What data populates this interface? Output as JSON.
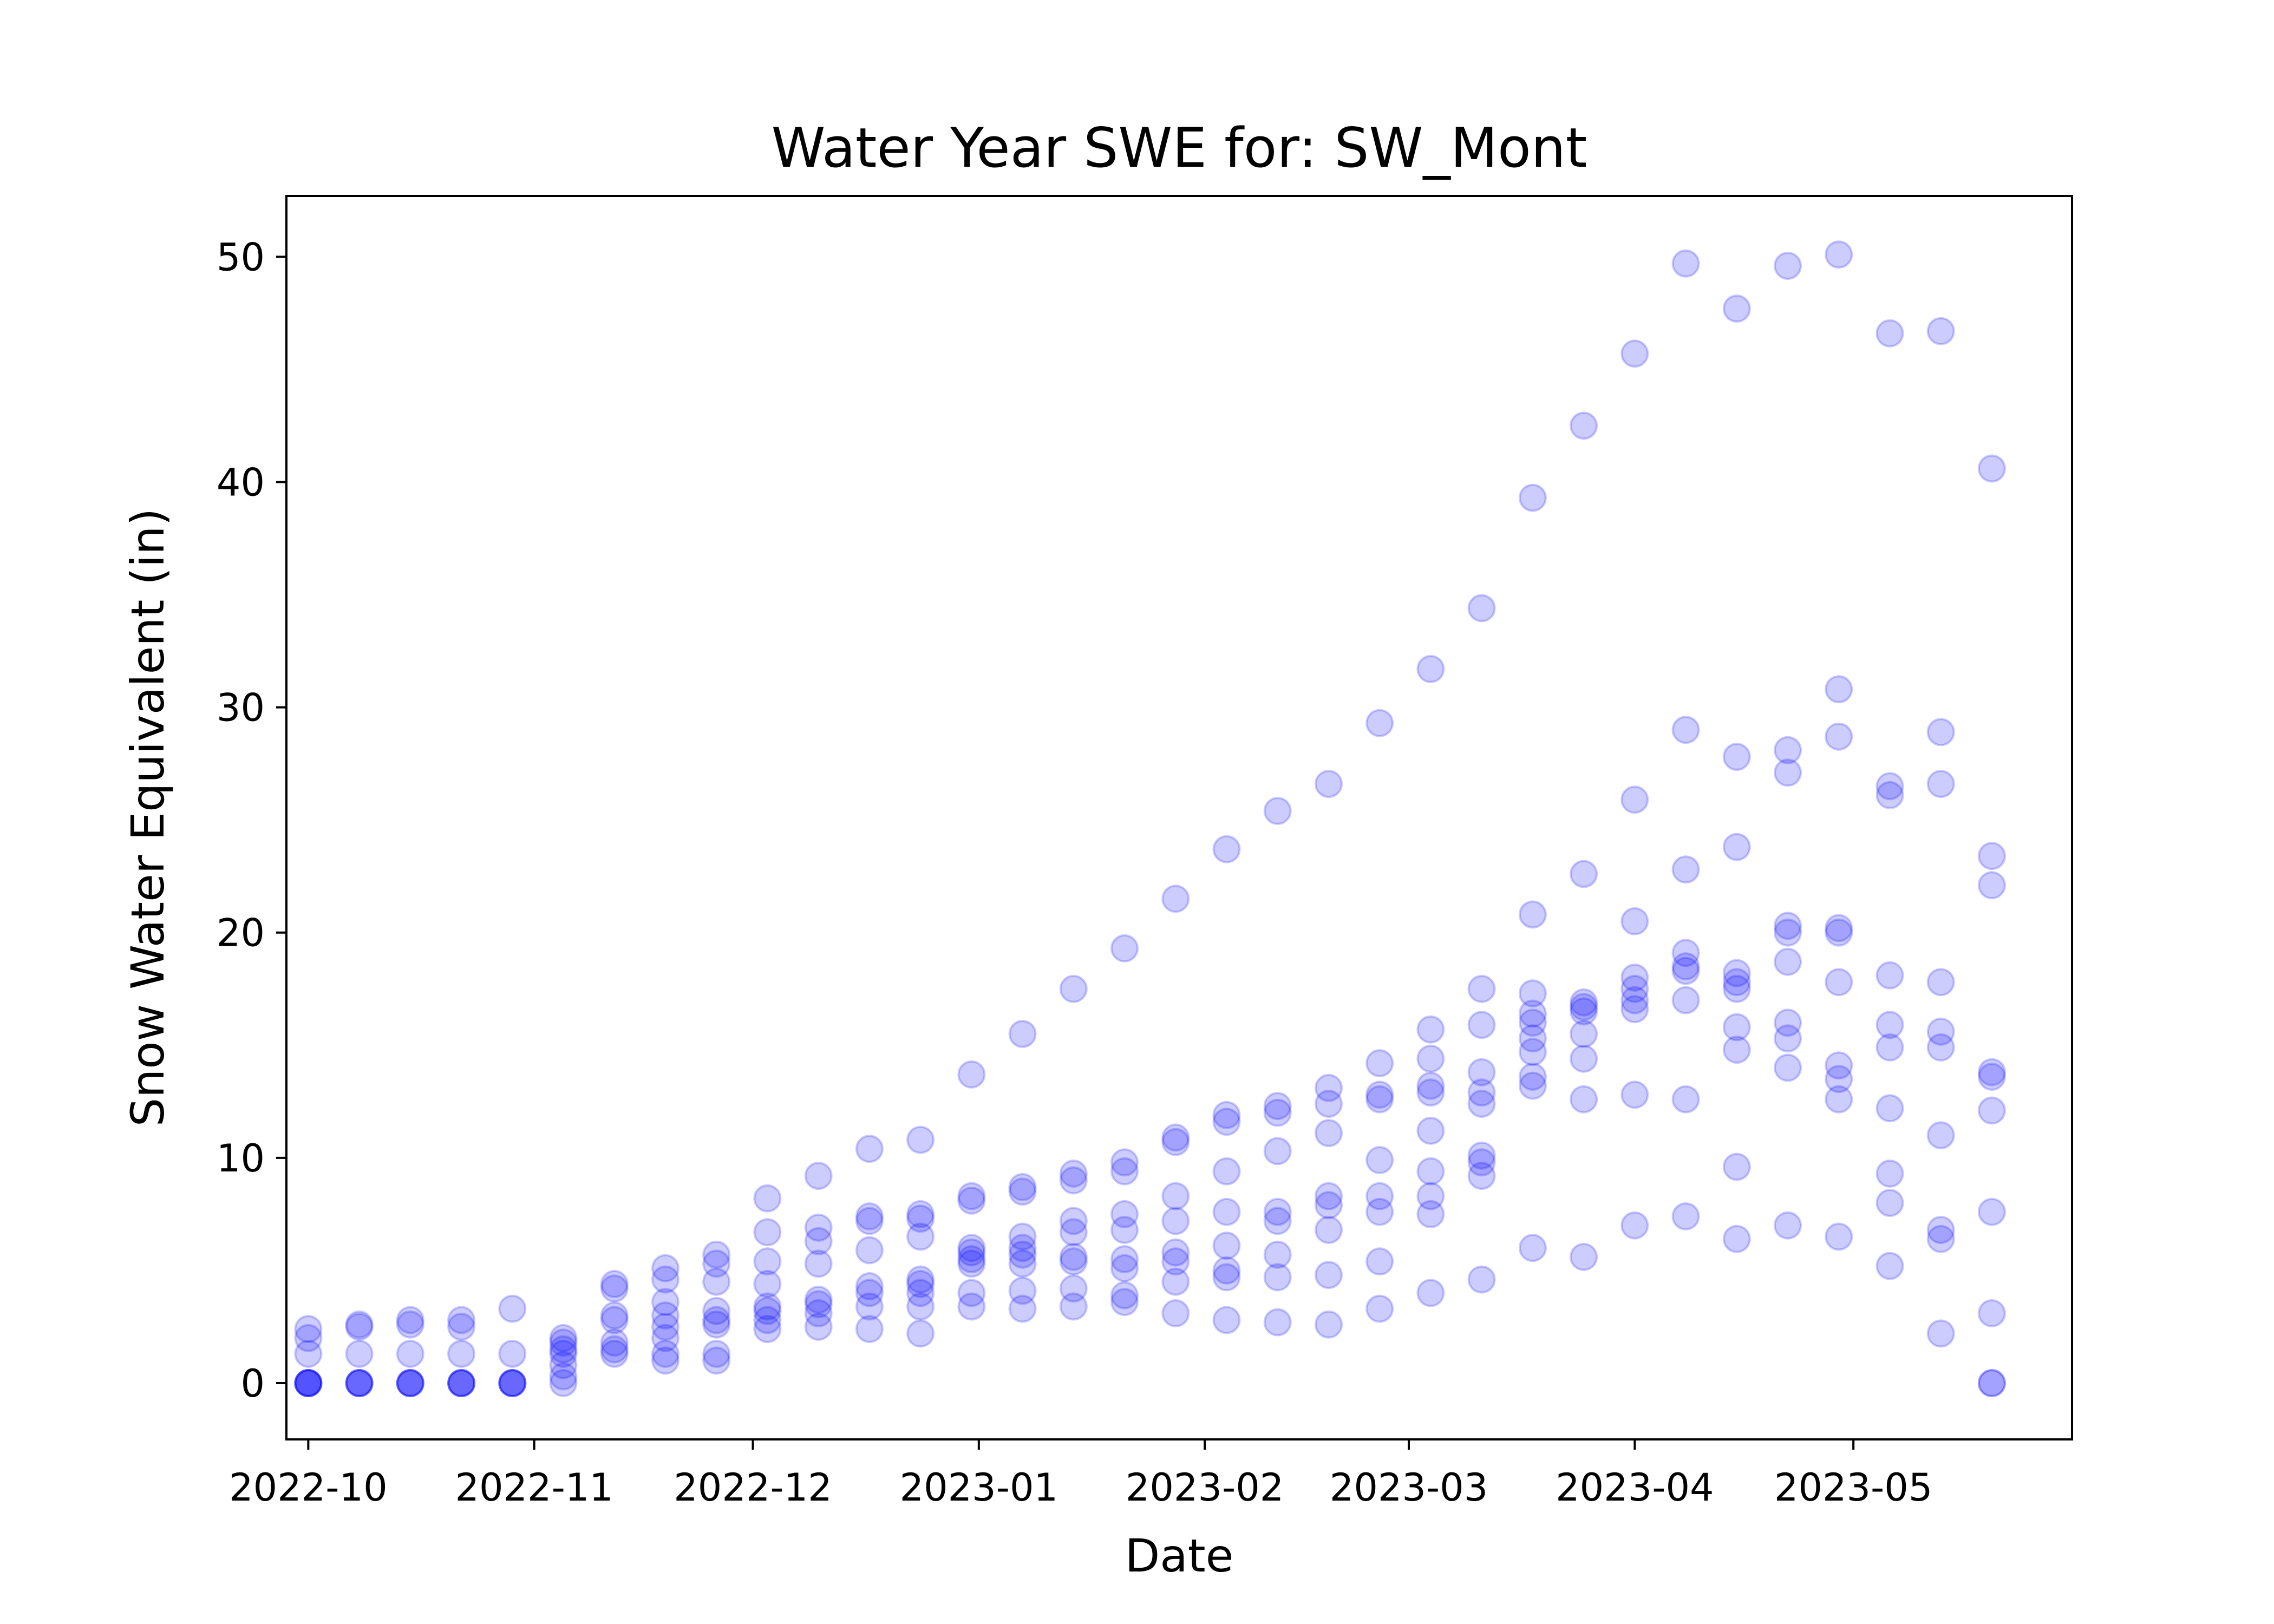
{
  "chart_data": {
    "type": "scatter",
    "title": "Water Year SWE for: SW_Mont",
    "xlabel": "Date",
    "ylabel": "Snow Water Equivalent (in)",
    "x_axis": {
      "kind": "date",
      "range": [
        "2022-09-28",
        "2023-05-31"
      ],
      "tick_labels": [
        "2022-10",
        "2022-11",
        "2022-12",
        "2023-01",
        "2023-02",
        "2023-03",
        "2023-04",
        "2023-05"
      ]
    },
    "y_axis": {
      "range": [
        -2.5,
        52.7
      ],
      "ticks": [
        0,
        10,
        20,
        30,
        40,
        50
      ]
    },
    "grid": false,
    "legend": "none",
    "marker": {
      "color": "#0000ff",
      "opacity": 0.2,
      "shape": "circle"
    },
    "points": [
      {
        "date": "2022-10-01",
        "values": [
          0,
          0,
          0,
          0,
          0,
          1.3,
          2.0,
          2.4
        ]
      },
      {
        "date": "2022-10-08",
        "values": [
          0,
          0,
          0,
          0,
          1.3,
          2.5,
          2.6
        ]
      },
      {
        "date": "2022-10-15",
        "values": [
          0,
          0,
          0,
          0,
          1.3,
          2.6,
          2.8
        ]
      },
      {
        "date": "2022-10-22",
        "values": [
          0,
          0,
          0,
          0,
          1.3,
          2.5,
          2.8
        ]
      },
      {
        "date": "2022-10-29",
        "values": [
          0,
          0,
          0,
          0,
          1.3,
          3.3
        ]
      },
      {
        "date": "2022-11-05",
        "values": [
          0,
          0.3,
          0.8,
          1.3,
          1.5,
          1.8,
          2.0
        ]
      },
      {
        "date": "2022-11-12",
        "values": [
          1.3,
          1.5,
          1.8,
          2.8,
          3.0,
          4.2,
          4.4
        ]
      },
      {
        "date": "2022-11-19",
        "values": [
          1.0,
          1.3,
          2.0,
          2.5,
          3.0,
          3.6,
          4.6,
          5.1
        ]
      },
      {
        "date": "2022-11-26",
        "values": [
          1.0,
          1.3,
          2.6,
          2.8,
          3.2,
          4.5,
          5.3,
          5.7
        ]
      },
      {
        "date": "2022-12-03",
        "values": [
          2.4,
          2.8,
          3.2,
          3.4,
          4.4,
          5.4,
          6.7,
          8.2
        ]
      },
      {
        "date": "2022-12-10",
        "values": [
          2.5,
          3.1,
          3.5,
          3.7,
          5.3,
          6.3,
          6.9,
          9.2
        ]
      },
      {
        "date": "2022-12-17",
        "values": [
          2.4,
          3.4,
          4.0,
          4.3,
          5.9,
          7.2,
          7.4,
          10.4
        ]
      },
      {
        "date": "2022-12-24",
        "values": [
          2.2,
          3.4,
          4.0,
          4.4,
          4.6,
          6.5,
          7.3,
          7.5,
          10.8
        ]
      },
      {
        "date": "2022-12-31",
        "values": [
          3.4,
          4.0,
          5.3,
          5.5,
          5.8,
          6.0,
          8.1,
          8.3,
          13.7
        ]
      },
      {
        "date": "2023-01-07",
        "values": [
          3.3,
          4.1,
          5.3,
          5.7,
          6.0,
          6.5,
          8.5,
          8.7,
          15.5
        ]
      },
      {
        "date": "2023-01-14",
        "values": [
          3.4,
          4.2,
          5.4,
          5.6,
          6.7,
          7.2,
          9.0,
          9.3,
          17.5
        ]
      },
      {
        "date": "2023-01-21",
        "values": [
          3.6,
          3.9,
          5.1,
          5.5,
          6.8,
          7.5,
          9.4,
          9.8,
          19.3
        ]
      },
      {
        "date": "2023-01-28",
        "values": [
          3.1,
          4.5,
          5.4,
          5.8,
          7.2,
          8.3,
          10.7,
          10.9,
          21.5
        ]
      },
      {
        "date": "2023-02-04",
        "values": [
          2.8,
          4.7,
          5.0,
          6.1,
          7.6,
          9.4,
          11.6,
          11.9,
          23.7
        ]
      },
      {
        "date": "2023-02-11",
        "values": [
          2.7,
          4.7,
          5.7,
          7.2,
          7.6,
          10.3,
          12.0,
          12.3,
          25.4
        ]
      },
      {
        "date": "2023-02-18",
        "values": [
          2.6,
          4.8,
          6.8,
          7.9,
          8.3,
          11.1,
          12.4,
          13.1,
          26.6
        ]
      },
      {
        "date": "2023-02-25",
        "values": [
          3.3,
          5.4,
          7.6,
          8.3,
          9.9,
          12.6,
          12.8,
          14.2,
          29.3
        ]
      },
      {
        "date": "2023-03-04",
        "values": [
          4.0,
          7.5,
          8.3,
          9.4,
          11.2,
          12.9,
          13.2,
          14.4,
          15.7,
          31.7
        ]
      },
      {
        "date": "2023-03-11",
        "values": [
          4.6,
          9.2,
          9.8,
          10.1,
          12.4,
          12.9,
          13.8,
          15.9,
          17.5,
          34.4
        ]
      },
      {
        "date": "2023-03-18",
        "values": [
          6.0,
          13.2,
          13.6,
          14.7,
          15.3,
          16.0,
          16.4,
          17.3,
          20.8,
          39.3
        ]
      },
      {
        "date": "2023-03-25",
        "values": [
          5.6,
          12.6,
          14.4,
          15.5,
          16.5,
          16.7,
          16.9,
          22.6,
          42.5
        ]
      },
      {
        "date": "2023-04-01",
        "values": [
          7.0,
          12.8,
          16.6,
          17.0,
          17.5,
          18.0,
          20.5,
          25.9,
          45.7
        ]
      },
      {
        "date": "2023-04-08",
        "values": [
          7.4,
          12.6,
          17.0,
          18.3,
          18.5,
          19.1,
          22.8,
          29.0,
          49.7
        ]
      },
      {
        "date": "2023-04-15",
        "values": [
          6.4,
          9.6,
          14.8,
          15.8,
          17.5,
          17.8,
          18.2,
          23.8,
          27.8,
          47.7
        ]
      },
      {
        "date": "2023-04-22",
        "values": [
          7.0,
          14.0,
          15.3,
          16.0,
          18.7,
          20.0,
          20.3,
          27.1,
          28.1,
          49.6
        ]
      },
      {
        "date": "2023-04-29",
        "values": [
          6.5,
          12.6,
          13.5,
          14.1,
          17.8,
          20.0,
          20.2,
          28.7,
          30.8,
          50.1
        ]
      },
      {
        "date": "2023-05-06",
        "values": [
          5.2,
          8.0,
          9.3,
          12.2,
          14.9,
          15.9,
          18.1,
          26.1,
          26.5,
          46.6
        ]
      },
      {
        "date": "2023-05-13",
        "values": [
          2.2,
          6.4,
          6.8,
          11.0,
          14.9,
          15.6,
          17.8,
          26.6,
          28.9,
          46.7
        ]
      },
      {
        "date": "2023-05-20",
        "values": [
          0,
          0,
          3.1,
          7.6,
          12.1,
          13.6,
          13.8,
          22.1,
          23.4,
          40.6
        ]
      }
    ]
  }
}
